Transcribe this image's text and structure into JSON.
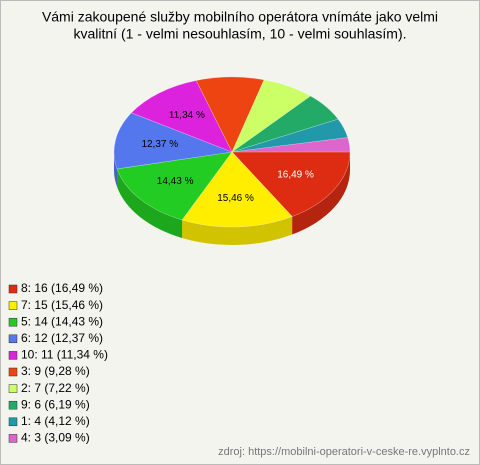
{
  "chart_data": {
    "type": "pie",
    "title": [
      "Vámi zakoupené služby mobilního operátora vnímáte jako velmi",
      "kvalitní (1 - velmi nesouhlasím, 10 - velmi souhlasím)."
    ],
    "categories": [
      "8: 16 (16,49 %)",
      "7: 15 (15,46 %)",
      "5: 14 (14,43 %)",
      "6: 12 (12,37 %)",
      "10: 11 (11,34 %)",
      "3: 9 (9,28 %)",
      "2: 7 (7,22 %)",
      "9: 6 (6,19 %)",
      "1: 4 (4,12 %)",
      "4: 3 (3,09 %)"
    ],
    "values": [
      16.49,
      15.46,
      14.43,
      12.37,
      11.34,
      9.28,
      7.22,
      6.19,
      4.12,
      3.09
    ],
    "value_labels": [
      "16,49 %",
      "15,46 %",
      "14,43 %",
      "12,37 %",
      "11,34 %",
      null,
      null,
      null,
      null,
      null
    ],
    "colors": [
      "#dd2c12",
      "#ffee00",
      "#22cc22",
      "#5577ee",
      "#dd22dd",
      "#ee4411",
      "#ccff66",
      "#22aa66",
      "#2299aa",
      "#dd66cc"
    ],
    "source": "zdroj: https://mobilni-operatori-v-ceske-re.vyplnto.cz"
  }
}
